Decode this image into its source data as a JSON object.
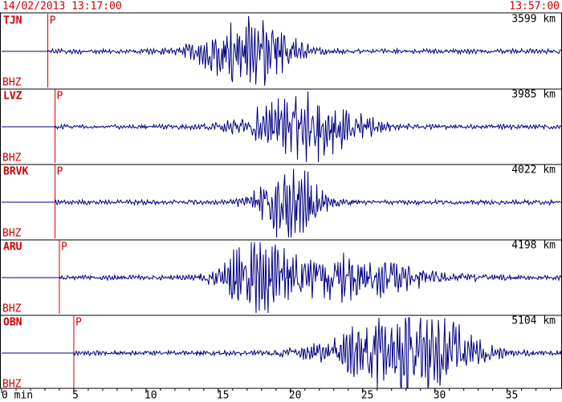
{
  "header": {
    "start_time": "14/02/2013 13:17:00",
    "end_time": "13:57:00"
  },
  "axis": {
    "xlim": [
      0,
      38.8
    ],
    "xticks": [
      {
        "value": 0,
        "label": "0 min"
      },
      5,
      10,
      15,
      20,
      25,
      30,
      35
    ]
  },
  "traces": [
    {
      "station": "TJN",
      "distance": "3599 km",
      "channel": "BHZ",
      "phase": "P",
      "p_minute": 3.2
    },
    {
      "station": "LVZ",
      "distance": "3985 km",
      "channel": "BHZ",
      "phase": "P",
      "p_minute": 3.7
    },
    {
      "station": "BRVK",
      "distance": "4022 km",
      "channel": "BHZ",
      "phase": "P",
      "p_minute": 3.7
    },
    {
      "station": "ARU",
      "distance": "4198 km",
      "channel": "BHZ",
      "phase": "P",
      "p_minute": 4.0
    },
    {
      "station": "OBN",
      "distance": "5104 km",
      "channel": "BHZ",
      "phase": "P",
      "p_minute": 5.0
    }
  ]
}
